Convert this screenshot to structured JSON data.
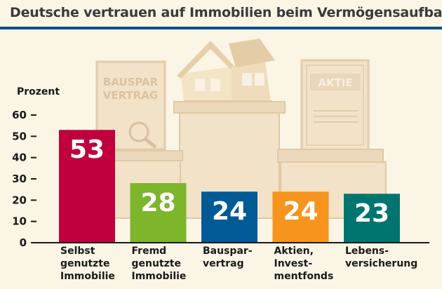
{
  "title": "Deutsche vertrauen auf Immobilien beim Vermögensaufbau",
  "colors": {
    "title_rule": "#0a4f8a",
    "background": "#fbf5e6",
    "bar_text": "#ffffff",
    "illustration": "#ead6b4"
  },
  "illustration": {
    "document_left_text": [
      "BAUSPAR",
      "VERTRAG"
    ],
    "document_right_text": "AKTIE"
  },
  "chart_data": {
    "type": "bar",
    "ylabel": "Prozent",
    "ylim": [
      0,
      60
    ],
    "yticks": [
      0,
      10,
      20,
      30,
      40,
      50,
      60
    ],
    "categories": [
      [
        "Selbst",
        "genutzte",
        "Immobilie"
      ],
      [
        "Fremd",
        "genutzte",
        "Immobilie"
      ],
      [
        "Bauspar-",
        "vertrag"
      ],
      [
        "Aktien,",
        "Invest-",
        "mentfonds"
      ],
      [
        "Lebens-",
        "versicherung"
      ]
    ],
    "values": [
      53,
      28,
      24,
      24,
      23
    ],
    "data_labels": [
      "53",
      "28",
      "24",
      "24",
      "23"
    ],
    "colors": [
      "#c0003c",
      "#7db52b",
      "#005a96",
      "#f7941d",
      "#00756f"
    ],
    "grid": false,
    "legend": "none"
  }
}
